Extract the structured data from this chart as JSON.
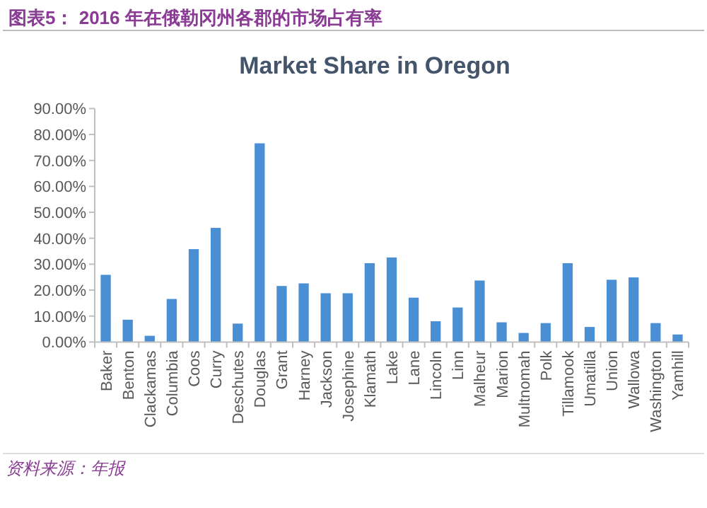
{
  "chart_data": {
    "type": "bar",
    "subtitle": "图表5： 2016 年在俄勒冈州各郡的市场占有率",
    "title": "Market Share in Oregon",
    "annotations": [
      "资料来源：年报"
    ],
    "categories": [
      "Baker",
      "Benton",
      "Clackamas",
      "Columbia",
      "Coos",
      "Curry",
      "Deschutes",
      "Douglas",
      "Grant",
      "Harney",
      "Jackson",
      "Josephine",
      "Klamath",
      "Lake",
      "Lane",
      "Lincoln",
      "Linn",
      "Malheur",
      "Marion",
      "Multnomah",
      "Polk",
      "Tillamook",
      "Umatilla",
      "Union",
      "Wallowa",
      "Washington",
      "Yamhill"
    ],
    "values": [
      25.9,
      8.6,
      2.4,
      16.6,
      35.8,
      44.0,
      7.1,
      76.6,
      21.6,
      22.6,
      18.8,
      18.8,
      30.4,
      32.6,
      17.1,
      8.0,
      13.3,
      23.7,
      7.6,
      3.5,
      7.3,
      30.4,
      5.8,
      24.0,
      24.9,
      7.3,
      2.9
    ],
    "color": "#4a8fd4",
    "ylim": [
      0,
      90
    ],
    "yticks": [
      {
        "value": 0,
        "label": "0.00%"
      },
      {
        "value": 10,
        "label": "10.00%"
      },
      {
        "value": 20,
        "label": "20.00%"
      },
      {
        "value": 30,
        "label": "30.00%"
      },
      {
        "value": 40,
        "label": "40.00%"
      },
      {
        "value": 50,
        "label": "50.00%"
      },
      {
        "value": 60,
        "label": "60.00%"
      },
      {
        "value": 70,
        "label": "70.00%"
      },
      {
        "value": 80,
        "label": "80.00%"
      },
      {
        "value": 90,
        "label": "90.00%"
      }
    ],
    "grid": false
  }
}
